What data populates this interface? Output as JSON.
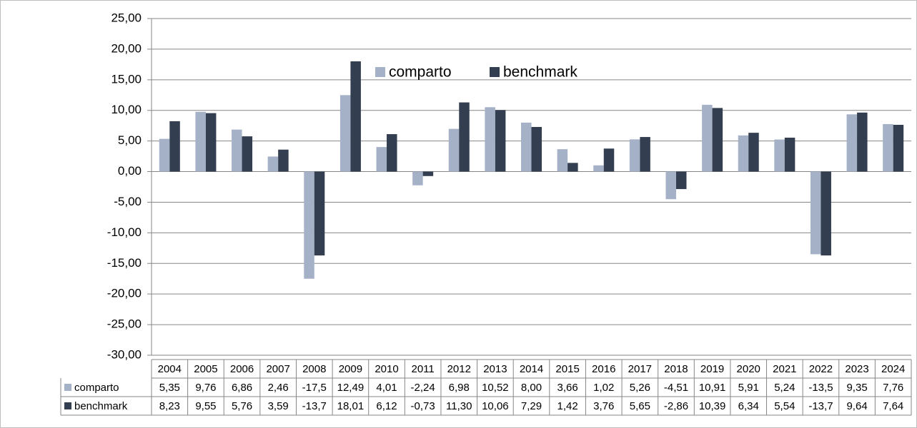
{
  "chart_data": {
    "type": "bar",
    "categories": [
      "2004",
      "2005",
      "2006",
      "2007",
      "2008",
      "2009",
      "2010",
      "2011",
      "2012",
      "2013",
      "2014",
      "2015",
      "2016",
      "2017",
      "2018",
      "2019",
      "2020",
      "2021",
      "2022",
      "2023",
      "2024"
    ],
    "series": [
      {
        "name": "comparto",
        "color": "#a5b1c6",
        "values": [
          5.35,
          9.76,
          6.86,
          2.46,
          -17.5,
          12.49,
          4.01,
          -2.24,
          6.98,
          10.52,
          8,
          3.66,
          1.02,
          5.26,
          -4.51,
          10.91,
          5.91,
          5.24,
          -13.5,
          9.35,
          7.76
        ],
        "value_labels": [
          "5,35",
          "9,76",
          "6,86",
          "2,46",
          "-17,5",
          "12,49",
          "4,01",
          "-2,24",
          "6,98",
          "10,52",
          "8,00",
          "3,66",
          "1,02",
          "5,26",
          "-4,51",
          "10,91",
          "5,91",
          "5,24",
          "-13,5",
          "9,35",
          "7,76"
        ]
      },
      {
        "name": "benchmark",
        "color": "#333f50",
        "values": [
          8.23,
          9.55,
          5.76,
          3.59,
          -13.7,
          18.01,
          6.12,
          -0.73,
          11.3,
          10.06,
          7.29,
          1.42,
          3.76,
          5.65,
          -2.86,
          10.39,
          6.34,
          5.54,
          -13.7,
          9.64,
          7.64
        ],
        "value_labels": [
          "8,23",
          "9,55",
          "5,76",
          "3,59",
          "-13,7",
          "18,01",
          "6,12",
          "-0,73",
          "11,30",
          "10,06",
          "7,29",
          "1,42",
          "3,76",
          "5,65",
          "-2,86",
          "10,39",
          "6,34",
          "5,54",
          "-13,7",
          "9,64",
          "7,64"
        ]
      }
    ],
    "ylim": [
      -30,
      25
    ],
    "yticks": [
      {
        "value": -30,
        "label": "-30,00"
      },
      {
        "value": -25,
        "label": "-25,00"
      },
      {
        "value": -20,
        "label": "-20,00"
      },
      {
        "value": -15,
        "label": "-15,00"
      },
      {
        "value": -10,
        "label": "-10,00"
      },
      {
        "value": -5,
        "label": "-5,00"
      },
      {
        "value": 0,
        "label": "0,00"
      },
      {
        "value": 5,
        "label": "5,00"
      },
      {
        "value": 10,
        "label": "10,00"
      },
      {
        "value": 15,
        "label": "15,00"
      },
      {
        "value": 20,
        "label": "20,00"
      },
      {
        "value": 25,
        "label": "25,00"
      }
    ],
    "grid": true,
    "legend": "top"
  }
}
